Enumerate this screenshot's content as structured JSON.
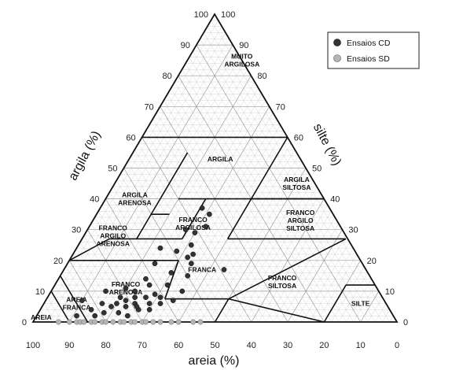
{
  "chart_data": {
    "type": "scatter",
    "subtype": "ternary",
    "axes": {
      "clay_title": "argila (%)",
      "silt_title": "silte (%)",
      "sand_title": "areia (%)",
      "clay_ticks": [
        "0",
        "10",
        "20",
        "30",
        "40",
        "50",
        "60",
        "70",
        "80",
        "90",
        "100"
      ],
      "silt_ticks": [
        "0",
        "10",
        "20",
        "30",
        "40",
        "50",
        "60",
        "70",
        "80",
        "90",
        "100"
      ],
      "sand_ticks": [
        "100",
        "90",
        "80",
        "70",
        "60",
        "50",
        "40",
        "30",
        "20",
        "10",
        "0"
      ],
      "range": [
        0,
        100
      ],
      "grid": true
    },
    "regions": [
      {
        "id": "muito-argilosa",
        "lines": [
          "MUITO",
          "ARGILOSA"
        ],
        "at": [
          15,
          85
        ]
      },
      {
        "id": "argila",
        "lines": [
          "ARGILA"
        ],
        "at": [
          25,
          53
        ]
      },
      {
        "id": "argila-siltosa",
        "lines": [
          "ARGILA",
          "SILTOSA"
        ],
        "at": [
          50,
          45
        ]
      },
      {
        "id": "argila-arenosa",
        "lines": [
          "ARGILA",
          "ARENOSA"
        ],
        "at": [
          8,
          40
        ]
      },
      {
        "id": "franco-argilosa",
        "lines": [
          "FRANCO",
          "ARGILOSA"
        ],
        "at": [
          28,
          32
        ]
      },
      {
        "id": "franco-argilo-siltosa",
        "lines": [
          "FRANCO",
          "ARGILO",
          "SILTOSA"
        ],
        "at": [
          57,
          33
        ]
      },
      {
        "id": "franco-argilo-arenosa",
        "lines": [
          "FRANCO",
          "ARGILO",
          "ARENOSA"
        ],
        "at": [
          8,
          28
        ]
      },
      {
        "id": "franca",
        "lines": [
          "FRANCA"
        ],
        "at": [
          38,
          17
        ]
      },
      {
        "id": "franco-siltosa",
        "lines": [
          "FRANCO",
          "SILTOSA"
        ],
        "at": [
          62,
          13
        ]
      },
      {
        "id": "franco-arenosa",
        "lines": [
          "FRANCO",
          "ARENOSA"
        ],
        "at": [
          20,
          11
        ]
      },
      {
        "id": "areia-franca",
        "lines": [
          "AREIA",
          "FRANCA"
        ],
        "at": [
          9,
          6
        ]
      },
      {
        "id": "silte",
        "lines": [
          "SILTE"
        ],
        "at": [
          87,
          6
        ]
      },
      {
        "id": "areia",
        "lines": [
          "AREIA"
        ],
        "at": [
          1.5,
          1.5
        ]
      }
    ],
    "legend": {
      "position": "top-right",
      "items": [
        {
          "label": "Ensaios CD",
          "color": "#333333"
        },
        {
          "label": "Ensaios SD",
          "color": "#b5b5b5"
        }
      ]
    },
    "series": [
      {
        "name": "Ensaios CD",
        "color": "#333333",
        "points": [
          {
            "silt": 28,
            "clay": 37
          },
          {
            "silt": 31,
            "clay": 35
          },
          {
            "silt": 32,
            "clay": 31
          },
          {
            "silt": 30,
            "clay": 29
          },
          {
            "silt": 27,
            "clay": 30
          },
          {
            "silt": 23,
            "clay": 24
          },
          {
            "silt": 31,
            "clay": 25
          },
          {
            "silt": 28,
            "clay": 23
          },
          {
            "silt": 32,
            "clay": 21
          },
          {
            "silt": 34,
            "clay": 19
          },
          {
            "silt": 24,
            "clay": 19
          },
          {
            "silt": 30,
            "clay": 16
          },
          {
            "silt": 35,
            "clay": 15
          },
          {
            "silt": 24,
            "clay": 14
          },
          {
            "silt": 26,
            "clay": 12
          },
          {
            "silt": 31,
            "clay": 12
          },
          {
            "silt": 36,
            "clay": 10
          },
          {
            "silt": 20,
            "clay": 11
          },
          {
            "silt": 44,
            "clay": 17
          },
          {
            "silt": 23,
            "clay": 10
          },
          {
            "silt": 15,
            "clay": 10
          },
          {
            "silt": 20,
            "clay": 8
          },
          {
            "silt": 24,
            "clay": 8
          },
          {
            "silt": 27,
            "clay": 8
          },
          {
            "silt": 31,
            "clay": 8
          },
          {
            "silt": 22,
            "clay": 7
          },
          {
            "silt": 25,
            "clay": 6
          },
          {
            "silt": 29,
            "clay": 6
          },
          {
            "silt": 32,
            "clay": 6
          },
          {
            "silt": 16,
            "clay": 6
          },
          {
            "silt": 19,
            "clay": 5
          },
          {
            "silt": 23,
            "clay": 5
          },
          {
            "silt": 27,
            "clay": 4
          },
          {
            "silt": 30,
            "clay": 4
          },
          {
            "silt": 18,
            "clay": 3
          },
          {
            "silt": 22,
            "clay": 3
          },
          {
            "silt": 25,
            "clay": 2
          },
          {
            "silt": 14,
            "clay": 4
          },
          {
            "silt": 20,
            "clay": 6
          },
          {
            "silt": 35,
            "clay": 7
          },
          {
            "silt": 11,
            "clay": 2
          },
          {
            "silt": 29,
            "clay": 9
          },
          {
            "silt": 26,
            "clay": 5
          },
          {
            "silt": 33,
            "clay": 22
          },
          {
            "silt": 10,
            "clay": 7
          },
          {
            "silt": 16,
            "clay": 2
          }
        ]
      },
      {
        "name": "Ensaios SD",
        "color": "#b5b5b5",
        "points": [
          {
            "silt": 7,
            "clay": 0
          },
          {
            "silt": 10,
            "clay": 0
          },
          {
            "silt": 12,
            "clay": 0
          },
          {
            "silt": 13,
            "clay": 0
          },
          {
            "silt": 14,
            "clay": 0
          },
          {
            "silt": 16,
            "clay": 0
          },
          {
            "silt": 17,
            "clay": 0
          },
          {
            "silt": 19,
            "clay": 0
          },
          {
            "silt": 20,
            "clay": 0
          },
          {
            "silt": 22,
            "clay": 0
          },
          {
            "silt": 24,
            "clay": 0
          },
          {
            "silt": 25,
            "clay": 0
          },
          {
            "silt": 27,
            "clay": 0
          },
          {
            "silt": 28,
            "clay": 0
          },
          {
            "silt": 30,
            "clay": 0
          },
          {
            "silt": 31,
            "clay": 0
          },
          {
            "silt": 33,
            "clay": 0
          },
          {
            "silt": 35,
            "clay": 0
          },
          {
            "silt": 38,
            "clay": 0
          },
          {
            "silt": 40,
            "clay": 0
          },
          {
            "silt": 44,
            "clay": 0
          },
          {
            "silt": 46,
            "clay": 0
          }
        ]
      }
    ]
  }
}
